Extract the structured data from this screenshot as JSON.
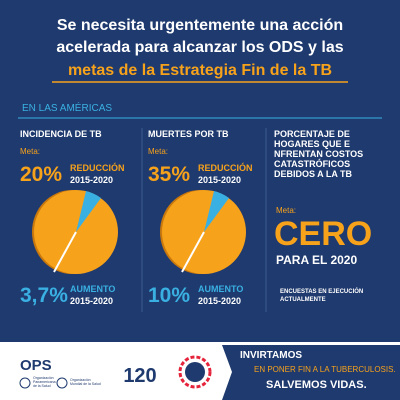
{
  "title": {
    "lines": [
      "Se necesita urgentemente una acción",
      "acelerada para alcanzar los ODS y las",
      "metas de la Estrategia Fin de la TB"
    ]
  },
  "region": "EN LAS AMÉRICAS",
  "panels": [
    {
      "heading": "INCIDENCIA DE TB",
      "meta": "Meta:",
      "target": "20%",
      "target_label": "REDUCCIÓN",
      "target_period": "2015-2020",
      "actual": "3,7%",
      "actual_label": "AUMENTO",
      "actual_period": "2015-2020"
    },
    {
      "heading": "MUERTES POR TB",
      "meta": "Meta:",
      "target": "35%",
      "target_label": "REDUCCIÓN",
      "target_period": "2015-2020",
      "actual": "10%",
      "actual_label": "AUMENTO",
      "actual_period": "2015-2020"
    }
  ],
  "costs": {
    "heading": [
      "PORCENTAJE DE",
      "HOGARES QUE E",
      "NFRENTAN COSTOS",
      "CATASTRÓFICOS",
      "DEBIDOS A LA TB"
    ],
    "meta": "Meta:",
    "target": "CERO",
    "target_year": "PARA EL 2020",
    "note": [
      "ENCUESTAS EN EJECUCIÓN",
      "ACTUALMENTE"
    ]
  },
  "footer": {
    "ops": "OPS",
    "ops_sub": [
      "Organización",
      "Panamericana",
      "de la Salud"
    ],
    "who_sub": [
      "Organización",
      "Mundial de la Salud"
    ],
    "anniversary": "120",
    "slogan": [
      "INVIRTAMOS",
      "EN PONER FIN A LA TUBERCULOSIS.",
      "SALVEMOS VIDAS."
    ]
  }
}
